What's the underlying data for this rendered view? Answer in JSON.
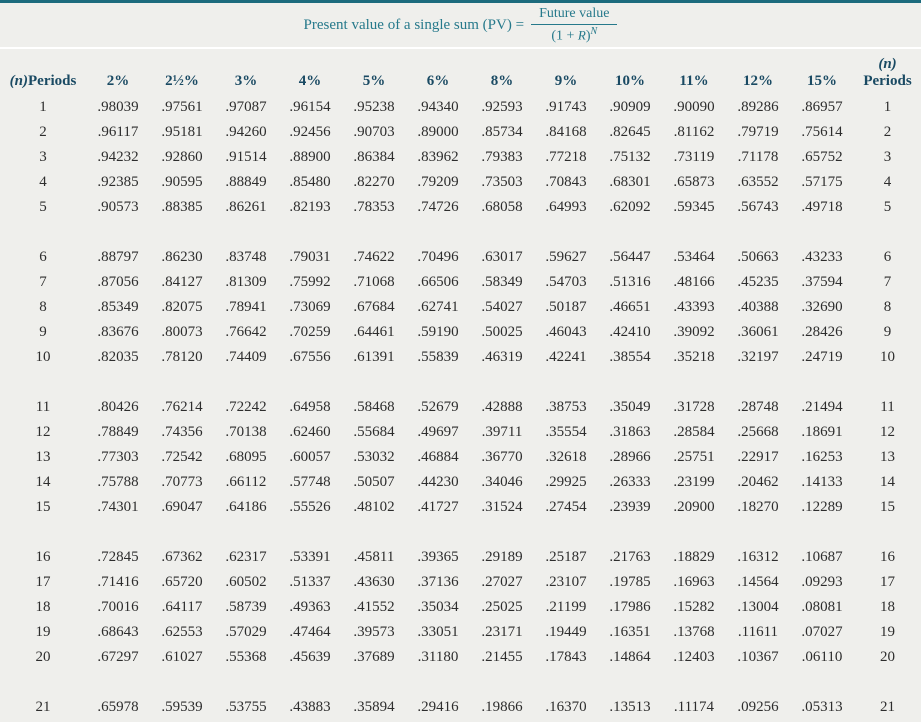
{
  "title": {
    "prefix": "Present value of a single sum (PV) =",
    "numerator": "Future value",
    "den_open": "(1 + ",
    "den_r": "R",
    "den_close": ")",
    "exponent": "N"
  },
  "table": {
    "first_header_n": "(n)",
    "first_header_label": "Periods",
    "rate_headers": [
      "2%",
      "2½%",
      "3%",
      "4%",
      "5%",
      "6%",
      "8%",
      "9%",
      "10%",
      "11%",
      "12%",
      "15%"
    ],
    "last_header_n": "(n)",
    "last_header_label": "Periods",
    "groups": [
      {
        "rows": [
          {
            "n": "1",
            "values": [
              ".98039",
              ".97561",
              ".97087",
              ".96154",
              ".95238",
              ".94340",
              ".92593",
              ".91743",
              ".90909",
              ".90090",
              ".89286",
              ".86957"
            ]
          },
          {
            "n": "2",
            "values": [
              ".96117",
              ".95181",
              ".94260",
              ".92456",
              ".90703",
              ".89000",
              ".85734",
              ".84168",
              ".82645",
              ".81162",
              ".79719",
              ".75614"
            ]
          },
          {
            "n": "3",
            "values": [
              ".94232",
              ".92860",
              ".91514",
              ".88900",
              ".86384",
              ".83962",
              ".79383",
              ".77218",
              ".75132",
              ".73119",
              ".71178",
              ".65752"
            ]
          },
          {
            "n": "4",
            "values": [
              ".92385",
              ".90595",
              ".88849",
              ".85480",
              ".82270",
              ".79209",
              ".73503",
              ".70843",
              ".68301",
              ".65873",
              ".63552",
              ".57175"
            ]
          },
          {
            "n": "5",
            "values": [
              ".90573",
              ".88385",
              ".86261",
              ".82193",
              ".78353",
              ".74726",
              ".68058",
              ".64993",
              ".62092",
              ".59345",
              ".56743",
              ".49718"
            ]
          }
        ]
      },
      {
        "rows": [
          {
            "n": "6",
            "values": [
              ".88797",
              ".86230",
              ".83748",
              ".79031",
              ".74622",
              ".70496",
              ".63017",
              ".59627",
              ".56447",
              ".53464",
              ".50663",
              ".43233"
            ]
          },
          {
            "n": "7",
            "values": [
              ".87056",
              ".84127",
              ".81309",
              ".75992",
              ".71068",
              ".66506",
              ".58349",
              ".54703",
              ".51316",
              ".48166",
              ".45235",
              ".37594"
            ]
          },
          {
            "n": "8",
            "values": [
              ".85349",
              ".82075",
              ".78941",
              ".73069",
              ".67684",
              ".62741",
              ".54027",
              ".50187",
              ".46651",
              ".43393",
              ".40388",
              ".32690"
            ]
          },
          {
            "n": "9",
            "values": [
              ".83676",
              ".80073",
              ".76642",
              ".70259",
              ".64461",
              ".59190",
              ".50025",
              ".46043",
              ".42410",
              ".39092",
              ".36061",
              ".28426"
            ]
          },
          {
            "n": "10",
            "values": [
              ".82035",
              ".78120",
              ".74409",
              ".67556",
              ".61391",
              ".55839",
              ".46319",
              ".42241",
              ".38554",
              ".35218",
              ".32197",
              ".24719"
            ]
          }
        ]
      },
      {
        "rows": [
          {
            "n": "11",
            "values": [
              ".80426",
              ".76214",
              ".72242",
              ".64958",
              ".58468",
              ".52679",
              ".42888",
              ".38753",
              ".35049",
              ".31728",
              ".28748",
              ".21494"
            ]
          },
          {
            "n": "12",
            "values": [
              ".78849",
              ".74356",
              ".70138",
              ".62460",
              ".55684",
              ".49697",
              ".39711",
              ".35554",
              ".31863",
              ".28584",
              ".25668",
              ".18691"
            ]
          },
          {
            "n": "13",
            "values": [
              ".77303",
              ".72542",
              ".68095",
              ".60057",
              ".53032",
              ".46884",
              ".36770",
              ".32618",
              ".28966",
              ".25751",
              ".22917",
              ".16253"
            ]
          },
          {
            "n": "14",
            "values": [
              ".75788",
              ".70773",
              ".66112",
              ".57748",
              ".50507",
              ".44230",
              ".34046",
              ".29925",
              ".26333",
              ".23199",
              ".20462",
              ".14133"
            ]
          },
          {
            "n": "15",
            "values": [
              ".74301",
              ".69047",
              ".64186",
              ".55526",
              ".48102",
              ".41727",
              ".31524",
              ".27454",
              ".23939",
              ".20900",
              ".18270",
              ".12289"
            ]
          }
        ]
      },
      {
        "rows": [
          {
            "n": "16",
            "values": [
              ".72845",
              ".67362",
              ".62317",
              ".53391",
              ".45811",
              ".39365",
              ".29189",
              ".25187",
              ".21763",
              ".18829",
              ".16312",
              ".10687"
            ]
          },
          {
            "n": "17",
            "values": [
              ".71416",
              ".65720",
              ".60502",
              ".51337",
              ".43630",
              ".37136",
              ".27027",
              ".23107",
              ".19785",
              ".16963",
              ".14564",
              ".09293"
            ]
          },
          {
            "n": "18",
            "values": [
              ".70016",
              ".64117",
              ".58739",
              ".49363",
              ".41552",
              ".35034",
              ".25025",
              ".21199",
              ".17986",
              ".15282",
              ".13004",
              ".08081"
            ]
          },
          {
            "n": "19",
            "values": [
              ".68643",
              ".62553",
              ".57029",
              ".47464",
              ".39573",
              ".33051",
              ".23171",
              ".19449",
              ".16351",
              ".13768",
              ".11611",
              ".07027"
            ]
          },
          {
            "n": "20",
            "values": [
              ".67297",
              ".61027",
              ".55368",
              ".45639",
              ".37689",
              ".31180",
              ".21455",
              ".17843",
              ".14864",
              ".12403",
              ".10367",
              ".06110"
            ]
          }
        ]
      },
      {
        "rows": [
          {
            "n": "21",
            "values": [
              ".65978",
              ".59539",
              ".53755",
              ".43883",
              ".35894",
              ".29416",
              ".19866",
              ".16370",
              ".13513",
              ".11174",
              ".09256",
              ".05313"
            ]
          }
        ]
      }
    ]
  },
  "colors": {
    "top_bar": "#1c6b7d",
    "accent_teal": "#26798b",
    "header_navy": "#1a4a63",
    "body_text": "#2d2d2d",
    "background": "#efefec",
    "divider_white": "#ffffff"
  }
}
